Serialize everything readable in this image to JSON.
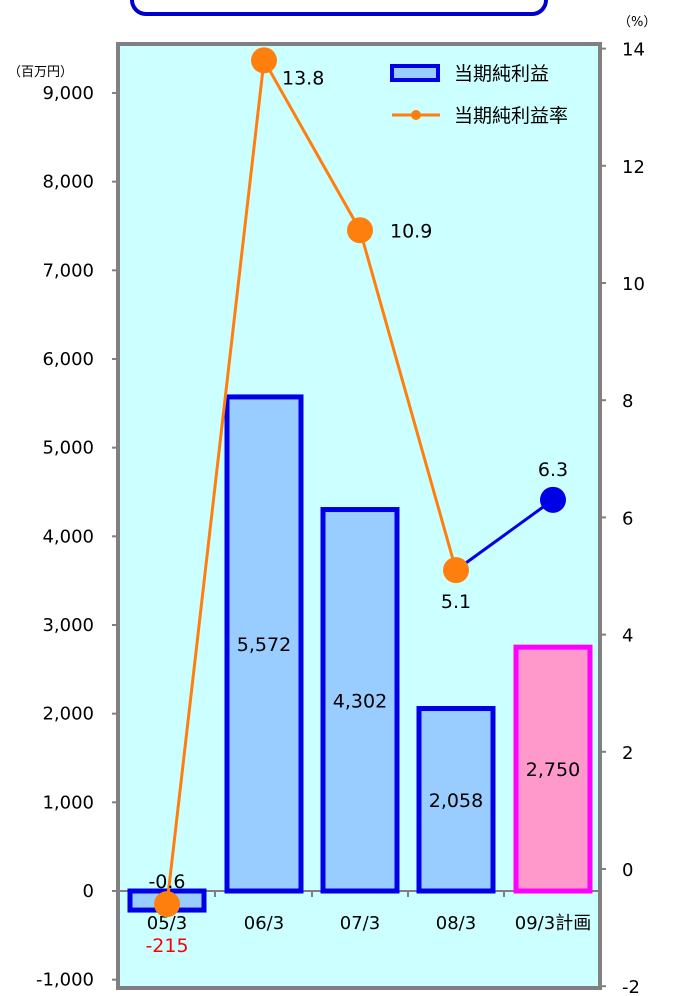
{
  "chart_data": {
    "type": "bar+line",
    "categories": [
      "05/3",
      "06/3",
      "07/3",
      "08/3",
      "09/3計画"
    ],
    "y_left": {
      "unit": "（百万円）",
      "ylim": [
        -1000,
        9000
      ],
      "ticks": [
        "-1,000",
        "0",
        "1,000",
        "2,000",
        "3,000",
        "4,000",
        "5,000",
        "6,000",
        "7,000",
        "8,000",
        "9,000"
      ]
    },
    "y_right": {
      "unit": "（%）",
      "ylim": [
        -2,
        14
      ],
      "ticks": [
        "-2",
        "0",
        "2",
        "4",
        "6",
        "8",
        "10",
        "12",
        "14"
      ]
    },
    "series": [
      {
        "name": "当期純利益",
        "kind": "bar",
        "axis": "left",
        "values": [
          -215,
          5572,
          4302,
          2058,
          2750
        ],
        "labels": [
          "-215",
          "5,572",
          "4,302",
          "2,058",
          "2,750"
        ]
      },
      {
        "name": "当期純利益率",
        "kind": "line",
        "axis": "right",
        "values": [
          -0.6,
          13.8,
          10.9,
          5.1,
          6.3
        ],
        "labels": [
          "-0.6",
          "13.8",
          "10.9",
          "5.1",
          "6.3"
        ]
      }
    ],
    "colors": {
      "bar_fill": "#99ccff",
      "bar_stroke": "#0000e6",
      "plan_fill": "#ff99cc",
      "plan_stroke": "#ff00ff",
      "line": "#ff7f0e",
      "plan_line": "#0000e6",
      "plot_bg": "#ccffff",
      "plot_border": "#808080",
      "negative_label": "#ff0000",
      "title_box": "#0000cc"
    },
    "legend_position": "top-right",
    "grid": false
  }
}
